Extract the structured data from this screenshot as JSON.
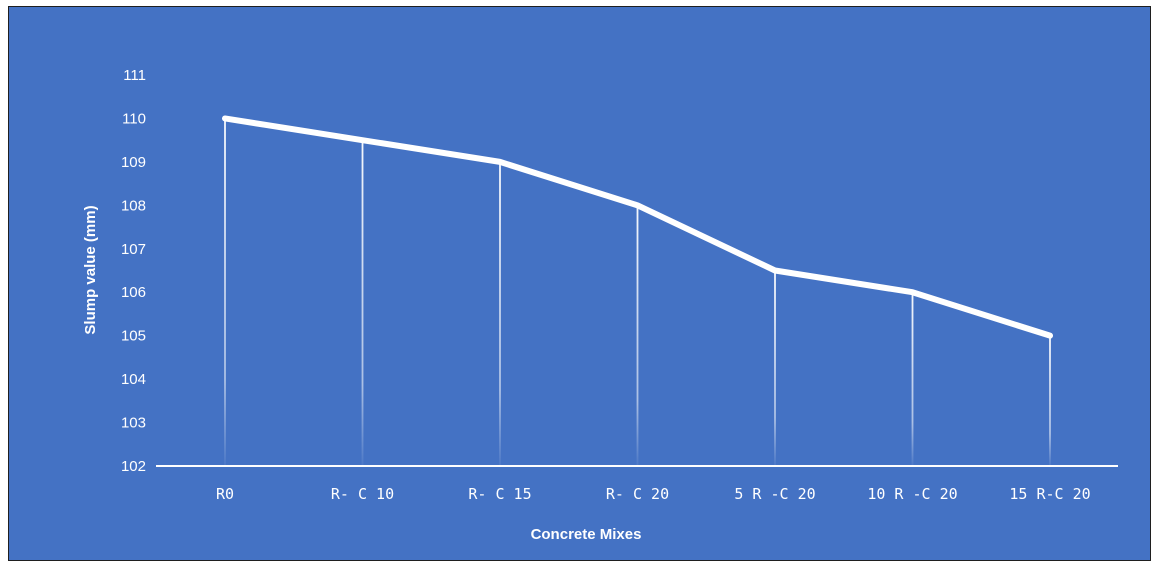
{
  "chart_data": {
    "type": "line",
    "title": "",
    "xlabel": "Concrete Mixes",
    "ylabel": "Slump value (mm)",
    "categories": [
      "R0",
      "R- C 10",
      "R- C 15",
      "R- C 20",
      "5 R -C 20",
      "10 R -C 20",
      "15 R-C 20"
    ],
    "series": [
      {
        "values": [
          110,
          109.5,
          109,
          108,
          106.5,
          106,
          105
        ]
      }
    ],
    "ylim": [
      102,
      111
    ],
    "yticks": [
      102,
      103,
      104,
      105,
      106,
      107,
      108,
      109,
      110,
      111
    ],
    "drop_lines": true,
    "grid": false,
    "legend": "none",
    "colors": {
      "background": "#4472c4",
      "line": "#ffffff",
      "text": "#ffffff"
    }
  }
}
